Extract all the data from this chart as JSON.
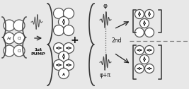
{
  "bg_color": "#e8e8e8",
  "circle_ec": "#555555",
  "circle_lw": 0.9,
  "arrow_color": "#000000",
  "text_color": "#111111",
  "labels": {
    "Ar": "Ar",
    "Cl": "Cl",
    "pump1": "1st\nPUMP",
    "plus": "+",
    "phi": "φ",
    "phi_pi": "φ+π",
    "second": "2nd"
  },
  "figsize": [
    2.67,
    1.26
  ],
  "dpi": 100
}
